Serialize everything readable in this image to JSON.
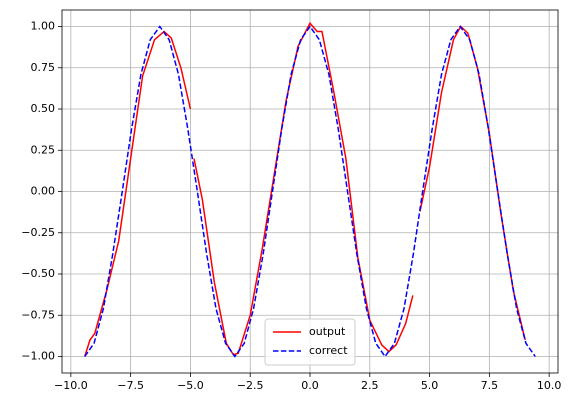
{
  "chart_data": {
    "type": "line",
    "xlim": [
      -10.37,
      10.37
    ],
    "ylim": [
      -1.1,
      1.1
    ],
    "xticks": [
      {
        "value": -10,
        "label": "−10.0"
      },
      {
        "value": -7.5,
        "label": "−7.5"
      },
      {
        "value": -5,
        "label": "−5.0"
      },
      {
        "value": -2.5,
        "label": "−2.5"
      },
      {
        "value": 0,
        "label": "0.0"
      },
      {
        "value": 2.5,
        "label": "2.5"
      },
      {
        "value": 5,
        "label": "5.0"
      },
      {
        "value": 7.5,
        "label": "7.5"
      },
      {
        "value": 10,
        "label": "10.0"
      }
    ],
    "yticks": [
      {
        "value": -1,
        "label": "−1.00"
      },
      {
        "value": -0.75,
        "label": "−0.75"
      },
      {
        "value": -0.5,
        "label": "−0.50"
      },
      {
        "value": -0.25,
        "label": "−0.25"
      },
      {
        "value": 0,
        "label": "0.00"
      },
      {
        "value": 0.25,
        "label": "0.25"
      },
      {
        "value": 0.5,
        "label": "0.50"
      },
      {
        "value": 0.75,
        "label": "0.75"
      },
      {
        "value": 1,
        "label": "1.00"
      }
    ],
    "grid": true,
    "legend": "lower center",
    "series": [
      {
        "name": "output",
        "color": "#ff0000",
        "dash": false,
        "x": [
          -9.42,
          -9.2,
          -9.0,
          -8.5,
          -8.0,
          -7.5,
          -7.0,
          -6.5,
          -6.1,
          -5.8,
          -5.4,
          -5.0,
          null,
          -4.85,
          -4.5,
          -4.0,
          -3.5,
          -3.2,
          -3.0,
          -2.5,
          -2.0,
          -1.5,
          -1.0,
          -0.5,
          0,
          0.3,
          0.5,
          1.0,
          1.5,
          2.0,
          2.5,
          3.0,
          3.3,
          3.6,
          4.0,
          4.3,
          null,
          4.6,
          5.0,
          5.5,
          6.0,
          6.3,
          6.6,
          7.0,
          7.5,
          8.0,
          8.5,
          9.0
        ],
        "values": [
          -1,
          -0.9,
          -0.86,
          -0.6,
          -0.3,
          0.2,
          0.7,
          0.92,
          0.97,
          0.93,
          0.75,
          0.5,
          null,
          0.2,
          -0.05,
          -0.55,
          -0.92,
          -0.99,
          -0.98,
          -0.75,
          -0.35,
          0.1,
          0.55,
          0.88,
          1.02,
          0.97,
          0.97,
          0.6,
          0.2,
          -0.4,
          -0.78,
          -0.93,
          -0.97,
          -0.93,
          -0.8,
          -0.63,
          null,
          -0.12,
          0.15,
          0.6,
          0.92,
          1.0,
          0.96,
          0.75,
          0.35,
          -0.15,
          -0.6,
          -0.9
        ]
      },
      {
        "name": "correct",
        "color": "#0000ff",
        "dash": true,
        "x": [
          -9.42,
          -9.03,
          -8.64,
          -8.25,
          -7.85,
          -7.46,
          -7.07,
          -6.68,
          -6.28,
          -5.89,
          -5.5,
          -5.11,
          -4.71,
          -4.32,
          -3.93,
          -3.53,
          -3.14,
          -2.75,
          -2.36,
          -1.96,
          -1.57,
          -1.18,
          -0.79,
          -0.39,
          0,
          0.39,
          0.79,
          1.18,
          1.57,
          1.96,
          2.36,
          2.75,
          3.14,
          3.53,
          3.93,
          4.32,
          4.71,
          5.11,
          5.5,
          5.89,
          6.28,
          6.68,
          7.07,
          7.46,
          7.85,
          8.25,
          8.64,
          9.03,
          9.42
        ],
        "values": [
          -1,
          -0.92,
          -0.71,
          -0.38,
          0,
          0.38,
          0.71,
          0.92,
          1,
          0.92,
          0.71,
          0.38,
          0,
          -0.38,
          -0.71,
          -0.92,
          -1,
          -0.92,
          -0.71,
          -0.38,
          0,
          0.38,
          0.71,
          0.92,
          1,
          0.92,
          0.71,
          0.38,
          0,
          -0.38,
          -0.71,
          -0.92,
          -1,
          -0.92,
          -0.71,
          -0.38,
          0,
          0.38,
          0.71,
          0.92,
          1,
          0.92,
          0.71,
          0.38,
          0,
          -0.38,
          -0.71,
          -0.92,
          -1
        ]
      }
    ]
  }
}
